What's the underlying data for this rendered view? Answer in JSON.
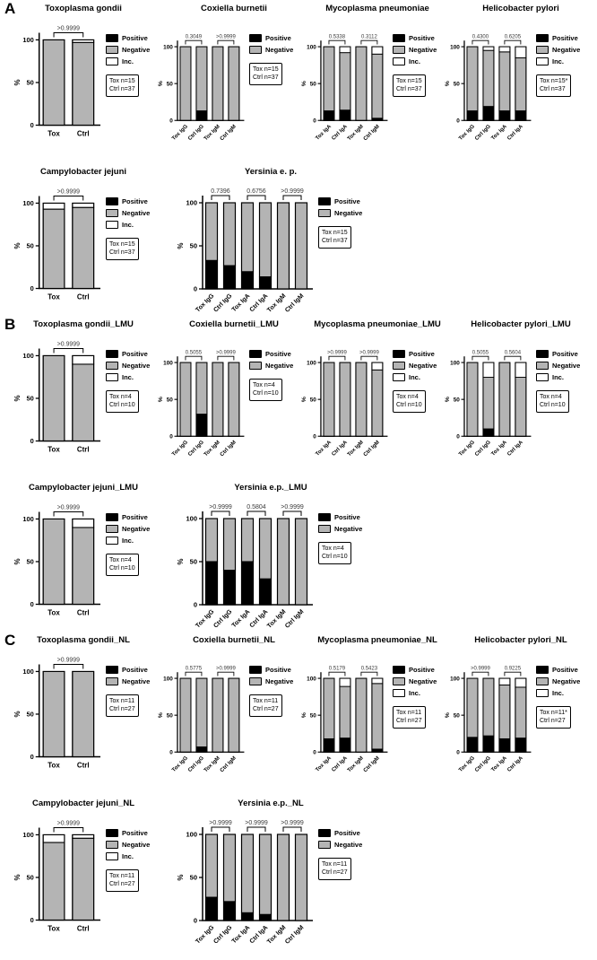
{
  "figure": {
    "y_axis_label": "%",
    "y_ticks": [
      0,
      50,
      100
    ],
    "ylim": [
      0,
      100
    ],
    "colors": {
      "positive": "#000000",
      "negative": "#b4b4b4",
      "inc": "#ffffff",
      "bar_border": "#000000",
      "axis": "#000000",
      "p_text": "#3a3a3a"
    },
    "legend_labels": {
      "positive": "Positive",
      "negative": "Negative",
      "inc": "Inc."
    }
  },
  "panels": [
    {
      "label": "A"
    },
    {
      "label": "B"
    },
    {
      "label": "C"
    }
  ],
  "chart_data": [
    {
      "type": "bar",
      "panel": "A",
      "title": "Toxoplasma gondii",
      "categories": [
        "Tox",
        "Ctrl"
      ],
      "ylabel": "%",
      "ylim": [
        0,
        100
      ],
      "legend": [
        "Positive",
        "Negative",
        "Inc."
      ],
      "n_box": [
        "Tox n=15",
        "Ctrl n=37"
      ],
      "p_values": [
        ">0.9999"
      ],
      "series": [
        {
          "name": "Positive",
          "values": [
            0,
            0
          ]
        },
        {
          "name": "Negative",
          "values": [
            100,
            97
          ]
        },
        {
          "name": "Inc.",
          "values": [
            0,
            3
          ]
        }
      ]
    },
    {
      "type": "bar",
      "panel": "A",
      "title": "Coxiella burnetii",
      "categories": [
        "Tox IgG",
        "Ctrl IgG",
        "Tox IgM",
        "Ctrl IgM"
      ],
      "ylabel": "%",
      "ylim": [
        0,
        100
      ],
      "legend": [
        "Positive",
        "Negative"
      ],
      "n_box": [
        "Tox n=15",
        "Ctrl n=37"
      ],
      "p_values": [
        "0.3049",
        ">0.9999"
      ],
      "series": [
        {
          "name": "Positive",
          "values": [
            0,
            13,
            0,
            0
          ]
        },
        {
          "name": "Negative",
          "values": [
            100,
            87,
            100,
            100
          ]
        }
      ]
    },
    {
      "type": "bar",
      "panel": "A",
      "title": "Mycoplasma pneumoniae",
      "categories": [
        "Tox IgA",
        "Ctrl IgA",
        "Tox IgM",
        "Ctrl IgM"
      ],
      "ylabel": "%",
      "ylim": [
        0,
        100
      ],
      "legend": [
        "Positive",
        "Negative",
        "Inc."
      ],
      "n_box": [
        "Tox n=15",
        "Ctrl n=37"
      ],
      "p_values": [
        "0.5338",
        "0.3112"
      ],
      "series": [
        {
          "name": "Positive",
          "values": [
            13,
            14,
            0,
            3
          ]
        },
        {
          "name": "Negative",
          "values": [
            87,
            78,
            100,
            87
          ]
        },
        {
          "name": "Inc.",
          "values": [
            0,
            8,
            0,
            10
          ]
        }
      ]
    },
    {
      "type": "bar",
      "panel": "A",
      "title": "Helicobacter pylori",
      "categories": [
        "Tox IgG",
        "Ctrl IgG",
        "Tox IgA",
        "Ctrl IgA"
      ],
      "ylabel": "%",
      "ylim": [
        0,
        100
      ],
      "legend": [
        "Positive",
        "Negative",
        "Inc."
      ],
      "n_box": [
        "Tox n=15*",
        "Ctrl n=37"
      ],
      "p_values": [
        "0.4300",
        "0.6205"
      ],
      "series": [
        {
          "name": "Positive",
          "values": [
            13,
            19,
            13,
            13
          ]
        },
        {
          "name": "Negative",
          "values": [
            87,
            76,
            80,
            72
          ]
        },
        {
          "name": "Inc.",
          "values": [
            0,
            5,
            7,
            15
          ]
        }
      ]
    },
    {
      "type": "bar",
      "panel": "A",
      "title": "Campylobacter jejuni",
      "categories": [
        "Tox",
        "Ctrl"
      ],
      "ylabel": "%",
      "ylim": [
        0,
        100
      ],
      "legend": [
        "Positive",
        "Negative",
        "Inc."
      ],
      "n_box": [
        "Tox n=15",
        "Ctrl n=37"
      ],
      "p_values": [
        ">0.9999"
      ],
      "series": [
        {
          "name": "Positive",
          "values": [
            0,
            0
          ]
        },
        {
          "name": "Negative",
          "values": [
            93,
            95
          ]
        },
        {
          "name": "Inc.",
          "values": [
            7,
            5
          ]
        }
      ]
    },
    {
      "type": "bar",
      "panel": "A",
      "title": "Yersinia e. p.",
      "categories": [
        "Tox IgG",
        "Ctrl IgG",
        "Tox IgA",
        "Ctrl IgA",
        "Tox IgM",
        "Ctrl IgM"
      ],
      "ylabel": "%",
      "ylim": [
        0,
        100
      ],
      "legend": [
        "Positive",
        "Negative"
      ],
      "n_box": [
        "Tox n=15",
        "Ctrl n=37"
      ],
      "p_values": [
        "0.7396",
        "0.6756",
        ">0.9999"
      ],
      "series": [
        {
          "name": "Positive",
          "values": [
            33,
            27,
            20,
            14,
            0,
            0
          ]
        },
        {
          "name": "Negative",
          "values": [
            67,
            73,
            80,
            86,
            100,
            100
          ]
        }
      ]
    },
    {
      "type": "bar",
      "panel": "B",
      "title": "Toxoplasma gondii_LMU",
      "categories": [
        "Tox",
        "Ctrl"
      ],
      "ylabel": "%",
      "ylim": [
        0,
        100
      ],
      "legend": [
        "Positive",
        "Negative",
        "Inc."
      ],
      "n_box": [
        "Tox n=4",
        "Ctrl n=10"
      ],
      "p_values": [
        ">0.9999"
      ],
      "series": [
        {
          "name": "Positive",
          "values": [
            0,
            0
          ]
        },
        {
          "name": "Negative",
          "values": [
            100,
            90
          ]
        },
        {
          "name": "Inc.",
          "values": [
            0,
            10
          ]
        }
      ]
    },
    {
      "type": "bar",
      "panel": "B",
      "title": "Coxiella burnetii_LMU",
      "categories": [
        "Tox IgG",
        "Ctrl IgG",
        "Tox IgM",
        "Ctrl IgM"
      ],
      "ylabel": "%",
      "ylim": [
        0,
        100
      ],
      "legend": [
        "Positive",
        "Negative"
      ],
      "n_box": [
        "Tox n=4",
        "Ctrl n=10"
      ],
      "p_values": [
        "0.5055",
        ">0.9999"
      ],
      "series": [
        {
          "name": "Positive",
          "values": [
            0,
            30,
            0,
            0
          ]
        },
        {
          "name": "Negative",
          "values": [
            100,
            70,
            100,
            100
          ]
        }
      ]
    },
    {
      "type": "bar",
      "panel": "B",
      "title": "Mycoplasma pneumoniae_LMU",
      "categories": [
        "Tox IgA",
        "Ctrl IgA",
        "Tox IgM",
        "Ctrl IgM"
      ],
      "ylabel": "%",
      "ylim": [
        0,
        100
      ],
      "legend": [
        "Positive",
        "Negative",
        "Inc."
      ],
      "n_box": [
        "Tox n=4",
        "Ctrl n=10"
      ],
      "p_values": [
        ">0.9999",
        ">0.9999"
      ],
      "series": [
        {
          "name": "Positive",
          "values": [
            0,
            0,
            0,
            0
          ]
        },
        {
          "name": "Negative",
          "values": [
            100,
            100,
            100,
            90
          ]
        },
        {
          "name": "Inc.",
          "values": [
            0,
            0,
            0,
            10
          ]
        }
      ]
    },
    {
      "type": "bar",
      "panel": "B",
      "title": "Helicobacter pylori_LMU",
      "categories": [
        "Tox IgG",
        "Ctrl IgG",
        "Tox IgA",
        "Ctrl IgA"
      ],
      "ylabel": "%",
      "ylim": [
        0,
        100
      ],
      "legend": [
        "Positive",
        "Negative",
        "Inc."
      ],
      "n_box": [
        "Tox n=4",
        "Ctrl n=10"
      ],
      "p_values": [
        "0.5055",
        "0.5604"
      ],
      "series": [
        {
          "name": "Positive",
          "values": [
            0,
            10,
            0,
            0
          ]
        },
        {
          "name": "Negative",
          "values": [
            100,
            70,
            100,
            80
          ]
        },
        {
          "name": "Inc.",
          "values": [
            0,
            20,
            0,
            20
          ]
        }
      ]
    },
    {
      "type": "bar",
      "panel": "B",
      "title": "Campylobacter jejuni_LMU",
      "categories": [
        "Tox",
        "Ctrl"
      ],
      "ylabel": "%",
      "ylim": [
        0,
        100
      ],
      "legend": [
        "Positive",
        "Negative",
        "Inc."
      ],
      "n_box": [
        "Tox n=4",
        "Ctrl n=10"
      ],
      "p_values": [
        ">0.9999"
      ],
      "series": [
        {
          "name": "Positive",
          "values": [
            0,
            0
          ]
        },
        {
          "name": "Negative",
          "values": [
            100,
            90
          ]
        },
        {
          "name": "Inc.",
          "values": [
            0,
            10
          ]
        }
      ]
    },
    {
      "type": "bar",
      "panel": "B",
      "title": "Yersinia e.p._LMU",
      "categories": [
        "Tox IgG",
        "Ctrl IgG",
        "Tox IgA",
        "Ctrl IgA",
        "Tox IgM",
        "Ctrl IgM"
      ],
      "ylabel": "%",
      "ylim": [
        0,
        100
      ],
      "legend": [
        "Positive",
        "Negative"
      ],
      "n_box": [
        "Tox n=4",
        "Ctrl n=10"
      ],
      "p_values": [
        ">0.9999",
        "0.5804",
        ">0.9999"
      ],
      "series": [
        {
          "name": "Positive",
          "values": [
            50,
            40,
            50,
            30,
            0,
            0
          ]
        },
        {
          "name": "Negative",
          "values": [
            50,
            60,
            50,
            70,
            100,
            100
          ]
        }
      ]
    },
    {
      "type": "bar",
      "panel": "C",
      "title": "Toxoplasma gondii_NL",
      "categories": [
        "Tox",
        "Ctrl"
      ],
      "ylabel": "%",
      "ylim": [
        0,
        100
      ],
      "legend": [
        "Positive",
        "Negative"
      ],
      "n_box": [
        "Tox n=11",
        "Ctrl n=27"
      ],
      "p_values": [
        ">0.9999"
      ],
      "series": [
        {
          "name": "Positive",
          "values": [
            0,
            0
          ]
        },
        {
          "name": "Negative",
          "values": [
            100,
            100
          ]
        }
      ]
    },
    {
      "type": "bar",
      "panel": "C",
      "title": "Coxiella burnetii_NL",
      "categories": [
        "Tox IgG",
        "Ctrl IgG",
        "Tox IgM",
        "Ctrl IgM"
      ],
      "ylabel": "%",
      "ylim": [
        0,
        100
      ],
      "legend": [
        "Positive",
        "Negative"
      ],
      "n_box": [
        "Tox n=11",
        "Ctrl n=27"
      ],
      "p_values": [
        "0.5775",
        ">0.9999"
      ],
      "series": [
        {
          "name": "Positive",
          "values": [
            0,
            7,
            0,
            0
          ]
        },
        {
          "name": "Negative",
          "values": [
            100,
            93,
            100,
            100
          ]
        }
      ]
    },
    {
      "type": "bar",
      "panel": "C",
      "title": "Mycoplasma pneumoniae_NL",
      "categories": [
        "Tox IgA",
        "Ctrl IgA",
        "Tox IgM",
        "Ctrl IgM"
      ],
      "ylabel": "%",
      "ylim": [
        0,
        100
      ],
      "legend": [
        "Positive",
        "Negative",
        "Inc."
      ],
      "n_box": [
        "Tox n=11",
        "Ctrl n=27"
      ],
      "p_values": [
        "0.5179",
        "0.5423"
      ],
      "series": [
        {
          "name": "Positive",
          "values": [
            18,
            19,
            0,
            4
          ]
        },
        {
          "name": "Negative",
          "values": [
            82,
            70,
            100,
            89
          ]
        },
        {
          "name": "Inc.",
          "values": [
            0,
            11,
            0,
            7
          ]
        }
      ]
    },
    {
      "type": "bar",
      "panel": "C",
      "title": "Helicobacter pylori_NL",
      "categories": [
        "Tox IgG",
        "Ctrl IgG",
        "Tox IgA",
        "Ctrl IgA"
      ],
      "ylabel": "%",
      "ylim": [
        0,
        100
      ],
      "legend": [
        "Positive",
        "Negative",
        "Inc."
      ],
      "n_box": [
        "Tox n=11*",
        "Ctrl n=27"
      ],
      "p_values": [
        ">0.9999",
        "0.9225"
      ],
      "series": [
        {
          "name": "Positive",
          "values": [
            20,
            22,
            18,
            19
          ]
        },
        {
          "name": "Negative",
          "values": [
            80,
            78,
            73,
            69
          ]
        },
        {
          "name": "Inc.",
          "values": [
            0,
            0,
            9,
            12
          ]
        }
      ]
    },
    {
      "type": "bar",
      "panel": "C",
      "title": "Campylobacter jejuni_NL",
      "categories": [
        "Tox",
        "Ctrl"
      ],
      "ylabel": "%",
      "ylim": [
        0,
        100
      ],
      "legend": [
        "Positive",
        "Negative",
        "Inc."
      ],
      "n_box": [
        "Tox n=11",
        "Ctrl n=27"
      ],
      "p_values": [
        ">0.9999"
      ],
      "series": [
        {
          "name": "Positive",
          "values": [
            0,
            0
          ]
        },
        {
          "name": "Negative",
          "values": [
            91,
            96
          ]
        },
        {
          "name": "Inc.",
          "values": [
            9,
            4
          ]
        }
      ]
    },
    {
      "type": "bar",
      "panel": "C",
      "title": "Yersinia e.p._NL",
      "categories": [
        "Tox IgG",
        "Ctrl IgG",
        "Tox IgA",
        "Ctrl IgA",
        "Tox IgM",
        "Ctrl IgM"
      ],
      "ylabel": "%",
      "ylim": [
        0,
        100
      ],
      "legend": [
        "Positive",
        "Negative"
      ],
      "n_box": [
        "Tox n=11",
        "Ctrl n=27"
      ],
      "p_values": [
        ">0.9999",
        ">0.9999",
        ">0.9999"
      ],
      "series": [
        {
          "name": "Positive",
          "values": [
            27,
            22,
            9,
            7,
            0,
            0
          ]
        },
        {
          "name": "Negative",
          "values": [
            73,
            78,
            91,
            93,
            100,
            100
          ]
        }
      ]
    }
  ]
}
